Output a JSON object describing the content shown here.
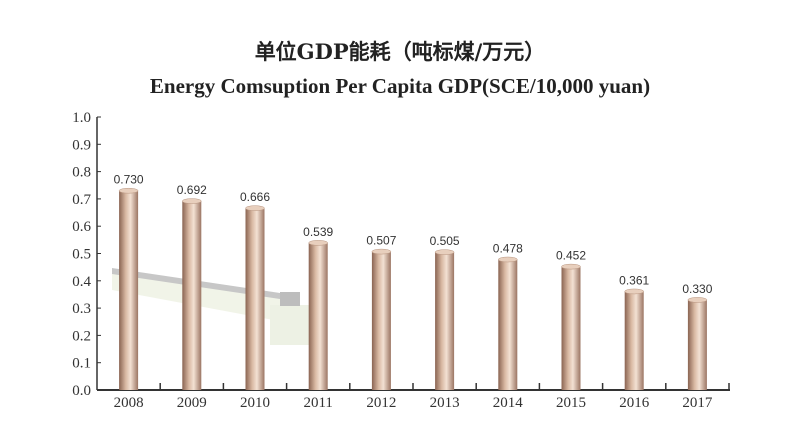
{
  "chart_data": {
    "type": "bar",
    "title": "单位GDP能耗（吨标煤/万元）",
    "subtitle": "Energy Comsuption Per Capita GDP(SCE/10,000 yuan)",
    "xlabel": "",
    "ylabel": "",
    "categories": [
      "2008",
      "2009",
      "2010",
      "2011",
      "2012",
      "2013",
      "2014",
      "2015",
      "2016",
      "2017"
    ],
    "values": [
      0.73,
      0.692,
      0.666,
      0.539,
      0.507,
      0.505,
      0.478,
      0.452,
      0.361,
      0.33
    ],
    "value_labels": [
      "0.730",
      "0.692",
      "0.666",
      "0.539",
      "0.507",
      "0.505",
      "0.478",
      "0.452",
      "0.361",
      "0.330"
    ],
    "ylim": [
      0,
      1.0
    ],
    "yticks": [
      "0.0",
      "0.1",
      "0.2",
      "0.3",
      "0.4",
      "0.5",
      "0.6",
      "0.7",
      "0.8",
      "0.9",
      "1.0"
    ],
    "grid": false,
    "bar_color": "#c8a68e"
  }
}
